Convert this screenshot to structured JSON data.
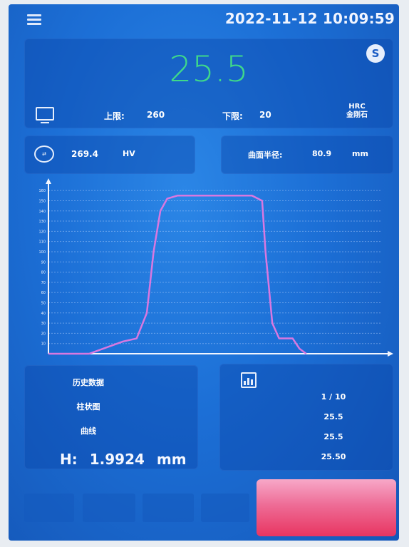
{
  "header": {
    "datetime": "2022-11-12 10:09:59"
  },
  "reading": {
    "value": "25.5",
    "badge": "S"
  },
  "limits": {
    "upper_label": "上限:",
    "upper_value": "260",
    "lower_label": "下限:",
    "lower_value": "20"
  },
  "scale": {
    "line1": "HRC",
    "line2": "金刚石"
  },
  "conversion": {
    "value": "269.4",
    "unit": "HV"
  },
  "radius": {
    "label": "曲面半径:",
    "value": "80.9",
    "unit": "mm"
  },
  "chart_data": {
    "type": "line",
    "y_ticks": [
      10,
      20,
      30,
      40,
      50,
      60,
      70,
      80,
      90,
      100,
      110,
      120,
      130,
      140,
      150,
      160
    ],
    "ylim": [
      0,
      165
    ],
    "xlim": [
      0,
      100
    ],
    "series": [
      {
        "x": [
          0,
          12,
          22,
          26,
          29,
          31,
          33,
          35,
          38,
          44,
          60,
          63,
          64,
          66,
          68,
          72,
          74,
          76
        ],
        "y": [
          0,
          0,
          12,
          15,
          40,
          100,
          140,
          152,
          155,
          155,
          155,
          150,
          100,
          30,
          15,
          15,
          5,
          0
        ]
      }
    ],
    "color": "#d978e0",
    "grid": true
  },
  "history": {
    "item1": "历史数据",
    "item2": "柱状图",
    "item3": "曲线",
    "h_label": "H:",
    "h_value": "1.9924",
    "h_unit": "mm"
  },
  "stats": {
    "page": "1 / 10",
    "v1": "25.5",
    "v2": "25.5",
    "v3": "25.50"
  }
}
